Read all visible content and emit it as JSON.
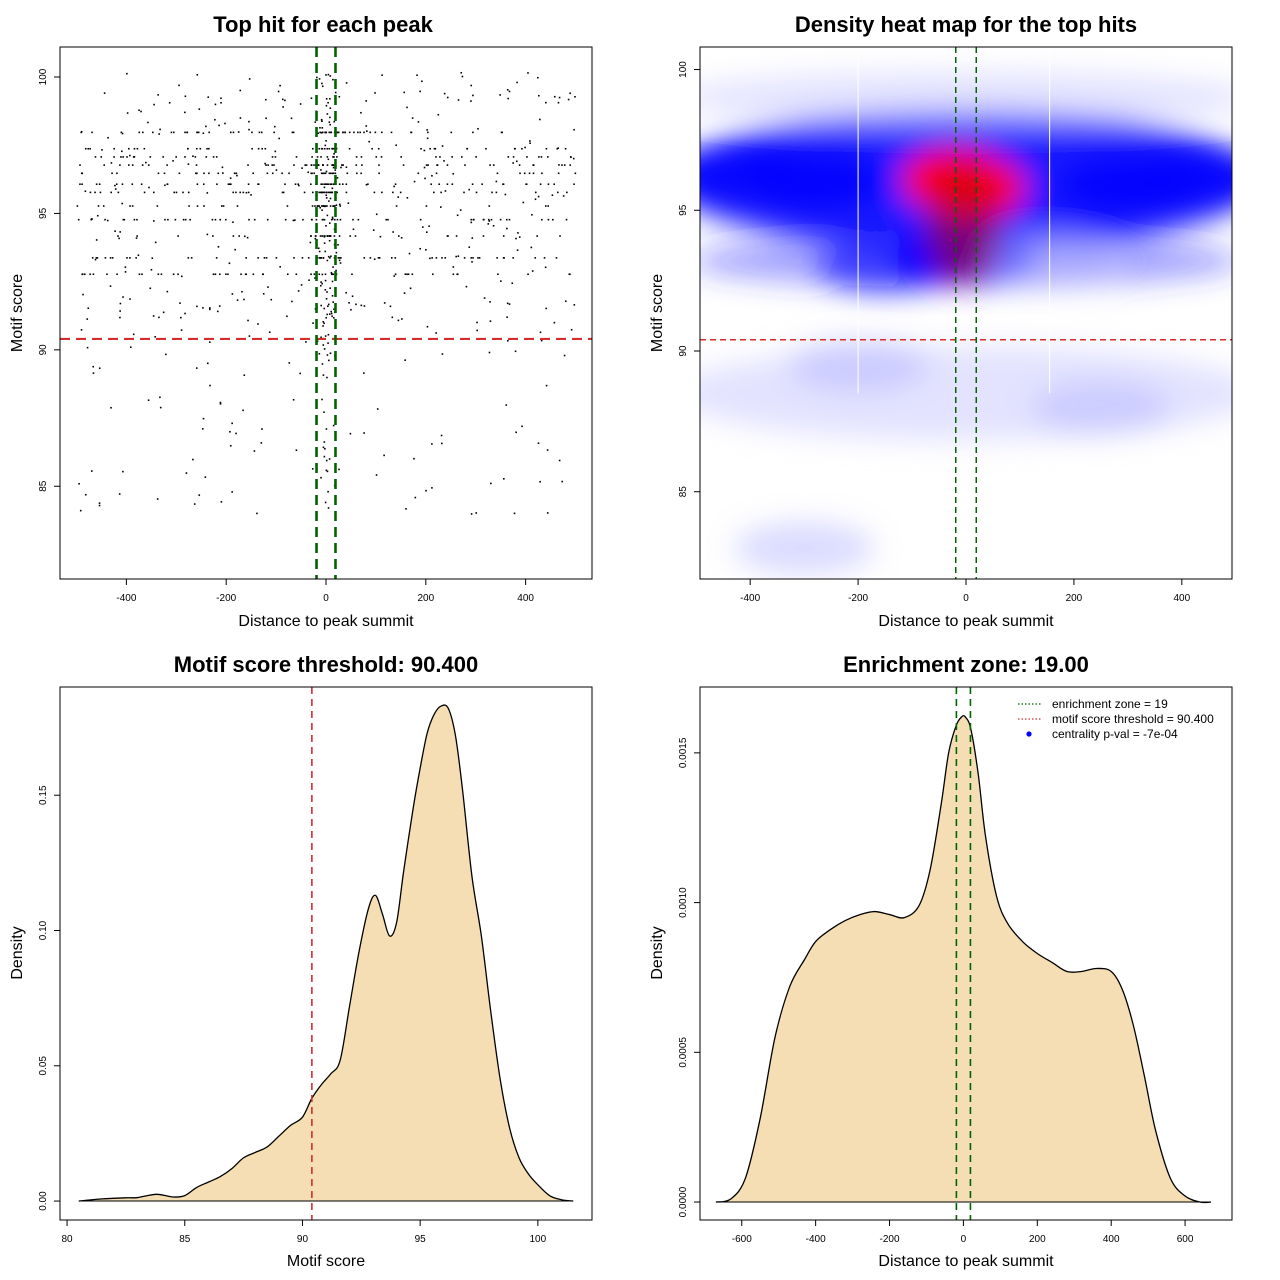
{
  "chart_data": [
    {
      "id": "scatter",
      "type": "scatter",
      "title": "Top hit for each peak",
      "xlabel": "Distance to peak summit",
      "ylabel": "Motif score",
      "xlim": [
        -533,
        533
      ],
      "ylim": [
        81.6,
        101.1
      ],
      "xticks": [
        -400,
        -200,
        0,
        200,
        400
      ],
      "yticks": [
        85,
        90,
        95,
        100
      ],
      "point_count": 1100,
      "point_color": "#000000",
      "threshold_line": {
        "value": 90.4,
        "color": "#d32f2f",
        "style": "dashed"
      },
      "zone_lines": {
        "values": [
          -19,
          19
        ],
        "color": "#006400",
        "style": "dashed"
      }
    },
    {
      "id": "heatmap",
      "type": "heatmap",
      "title": "Density heat map for the top hits",
      "xlabel": "Distance to peak summit",
      "ylabel": "Motif score",
      "xlim": [
        -493,
        493
      ],
      "ylim": [
        81.9,
        100.8
      ],
      "xticks": [
        -400,
        -200,
        0,
        200,
        400
      ],
      "yticks": [
        85,
        90,
        95,
        100
      ],
      "colors": [
        "#ffffff",
        "#0000ff",
        "#ff0000"
      ],
      "density_peaks": [
        {
          "x": 10,
          "y": 95.8,
          "level": 1.0
        },
        {
          "x": -20,
          "y": 96.1,
          "level": 0.85
        },
        {
          "x": -5,
          "y": 93.3,
          "level": 0.6
        },
        {
          "x": -280,
          "y": 96.0,
          "level": 0.45
        },
        {
          "x": 300,
          "y": 95.9,
          "level": 0.45
        },
        {
          "x": -430,
          "y": 96.4,
          "level": 0.3
        },
        {
          "x": 440,
          "y": 96.2,
          "level": 0.3
        },
        {
          "x": -150,
          "y": 93.0,
          "level": 0.25
        },
        {
          "x": 150,
          "y": 93.2,
          "level": 0.2
        },
        {
          "x": -200,
          "y": 89.5,
          "level": 0.08
        },
        {
          "x": 250,
          "y": 88.0,
          "level": 0.06
        },
        {
          "x": -300,
          "y": 83.0,
          "level": 0.05
        }
      ],
      "threshold_line": {
        "value": 90.4,
        "color": "#d32f2f",
        "style": "dashed"
      },
      "zone_lines": {
        "values": [
          -19,
          19
        ],
        "color": "#006400",
        "style": "dashed"
      },
      "guide_lines": [
        -200,
        155
      ]
    },
    {
      "id": "score_density",
      "type": "area",
      "title": "Motif score threshold: 90.400",
      "xlabel": "Motif score",
      "ylabel": "Density",
      "xlim": [
        79.7,
        102.3
      ],
      "ylim": [
        -0.007,
        0.19
      ],
      "xticks": [
        80,
        85,
        90,
        95,
        100
      ],
      "yticks": [
        0.0,
        0.05,
        0.1,
        0.15
      ],
      "ytick_labels": [
        "0.00",
        "0.05",
        "0.10",
        "0.15"
      ],
      "fill_color": "#f5deb3",
      "x": [
        80.5,
        81.5,
        82.5,
        83.0,
        83.8,
        84.5,
        85.0,
        85.5,
        86.0,
        86.5,
        87.0,
        87.5,
        88.0,
        88.5,
        89.0,
        89.5,
        90.0,
        90.4,
        90.8,
        91.2,
        91.6,
        92.0,
        92.4,
        92.8,
        93.1,
        93.4,
        93.7,
        94.0,
        94.3,
        94.7,
        95.0,
        95.3,
        95.6,
        95.9,
        96.2,
        96.5,
        96.8,
        97.2,
        97.6,
        98.0,
        98.4,
        98.8,
        99.2,
        99.6,
        100.0,
        100.5,
        101.0,
        101.5
      ],
      "y": [
        0.0,
        0.0008,
        0.0012,
        0.0013,
        0.0025,
        0.0015,
        0.002,
        0.005,
        0.007,
        0.009,
        0.012,
        0.016,
        0.018,
        0.02,
        0.024,
        0.028,
        0.031,
        0.038,
        0.043,
        0.047,
        0.052,
        0.072,
        0.092,
        0.108,
        0.113,
        0.106,
        0.098,
        0.103,
        0.122,
        0.145,
        0.16,
        0.173,
        0.18,
        0.183,
        0.182,
        0.172,
        0.152,
        0.12,
        0.098,
        0.07,
        0.045,
        0.027,
        0.016,
        0.01,
        0.006,
        0.002,
        0.0005,
        0.0
      ],
      "threshold_line": {
        "value": 90.4,
        "color": "#d32f2f",
        "style": "dashed"
      }
    },
    {
      "id": "distance_density",
      "type": "area",
      "title": "Enrichment zone: 19.00",
      "xlabel": "Distance to peak summit",
      "ylabel": "Density",
      "xlim": [
        -713,
        727
      ],
      "ylim": [
        -6e-05,
        0.00172
      ],
      "xticks": [
        -600,
        -400,
        -200,
        0,
        200,
        400,
        600
      ],
      "yticks": [
        0.0,
        0.0005,
        0.001,
        0.0015
      ],
      "ytick_labels": [
        "0.0000",
        "0.0005",
        "0.0010",
        "0.0015"
      ],
      "fill_color": "#f5deb3",
      "x": [
        -670,
        -630,
        -590,
        -550,
        -510,
        -470,
        -430,
        -400,
        -360,
        -320,
        -280,
        -240,
        -200,
        -160,
        -120,
        -90,
        -60,
        -40,
        -20,
        -5,
        5,
        20,
        40,
        60,
        90,
        120,
        160,
        200,
        240,
        280,
        320,
        360,
        400,
        430,
        460,
        490,
        520,
        560,
        600,
        640,
        670
      ],
      "y": [
        0.0,
        1e-05,
        8e-05,
        0.00028,
        0.00055,
        0.00072,
        0.00081,
        0.00087,
        0.00091,
        0.00094,
        0.00096,
        0.00097,
        0.00096,
        0.00095,
        0.00099,
        0.00111,
        0.00133,
        0.0015,
        0.00159,
        0.00162,
        0.00162,
        0.00158,
        0.00143,
        0.00122,
        0.00102,
        0.00093,
        0.00087,
        0.00083,
        0.0008,
        0.00077,
        0.00077,
        0.00078,
        0.00077,
        0.00071,
        0.00059,
        0.00042,
        0.00024,
        8e-05,
        2e-05,
        0.0,
        0.0
      ],
      "zone_lines": {
        "values": [
          -19,
          19
        ],
        "color": "#006400",
        "style": "dashed"
      },
      "legend": {
        "position": "top-right",
        "entries": [
          {
            "label": "enrichment zone = 19",
            "color": "#006400",
            "symbol": "dotted-line"
          },
          {
            "label": "motif score threshold = 90.400",
            "color": "#d32f2f",
            "symbol": "dotted-line"
          },
          {
            "label": "centrality p-val = -7e-04",
            "color": "#0000ff",
            "symbol": "point"
          }
        ]
      }
    }
  ]
}
